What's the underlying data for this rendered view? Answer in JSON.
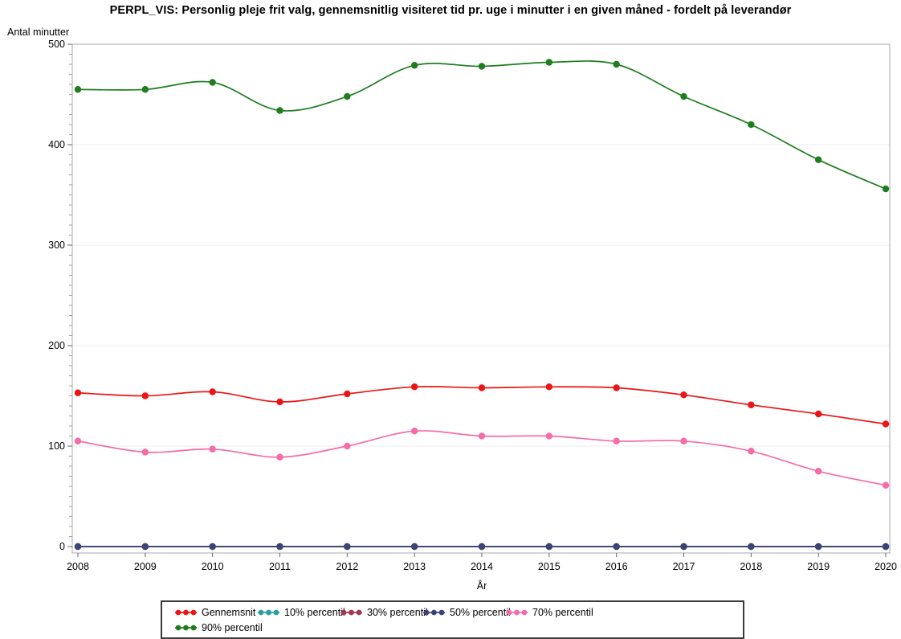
{
  "chart_data": {
    "type": "line",
    "title": "PERPL_VIS: Personlig pleje frit valg, gennemsnitlig visiteret tid pr. uge i minutter i en given måned - fordelt på leverandør",
    "xlabel": "År",
    "ylabel": "Antal minutter",
    "x": [
      2008,
      2009,
      2010,
      2011,
      2012,
      2013,
      2014,
      2015,
      2016,
      2017,
      2018,
      2019,
      2020
    ],
    "ylim": [
      0,
      500
    ],
    "yticks": [
      0,
      100,
      200,
      300,
      400,
      500
    ],
    "y_minor_step": 10,
    "grid": "horizontal",
    "legend_position": "bottom",
    "series": [
      {
        "name": "Gennemsnit",
        "color": "#ec1414",
        "values": [
          153,
          150,
          154,
          144,
          152,
          159,
          158,
          159,
          158,
          151,
          141,
          132,
          122
        ]
      },
      {
        "name": "10% percentil",
        "color": "#2b9f9f",
        "values": [
          0,
          0,
          0,
          0,
          0,
          0,
          0,
          0,
          0,
          0,
          0,
          0,
          0
        ]
      },
      {
        "name": "30% percentil",
        "color": "#a1384e",
        "values": [
          0,
          0,
          0,
          0,
          0,
          0,
          0,
          0,
          0,
          0,
          0,
          0,
          0
        ]
      },
      {
        "name": "50% percentil",
        "color": "#3a4576",
        "values": [
          0,
          0,
          0,
          0,
          0,
          0,
          0,
          0,
          0,
          0,
          0,
          0,
          0
        ]
      },
      {
        "name": "70% percentil",
        "color": "#f56ca9",
        "values": [
          105,
          94,
          97,
          89,
          100,
          115,
          110,
          110,
          105,
          105,
          95,
          75,
          61
        ]
      },
      {
        "name": "90% percentil",
        "color": "#1f7d1f",
        "values": [
          455,
          455,
          462,
          434,
          448,
          479,
          478,
          482,
          480,
          448,
          420,
          385,
          356
        ]
      }
    ],
    "legend_rows": [
      [
        0,
        1,
        2,
        3,
        4
      ],
      [
        5
      ]
    ]
  }
}
